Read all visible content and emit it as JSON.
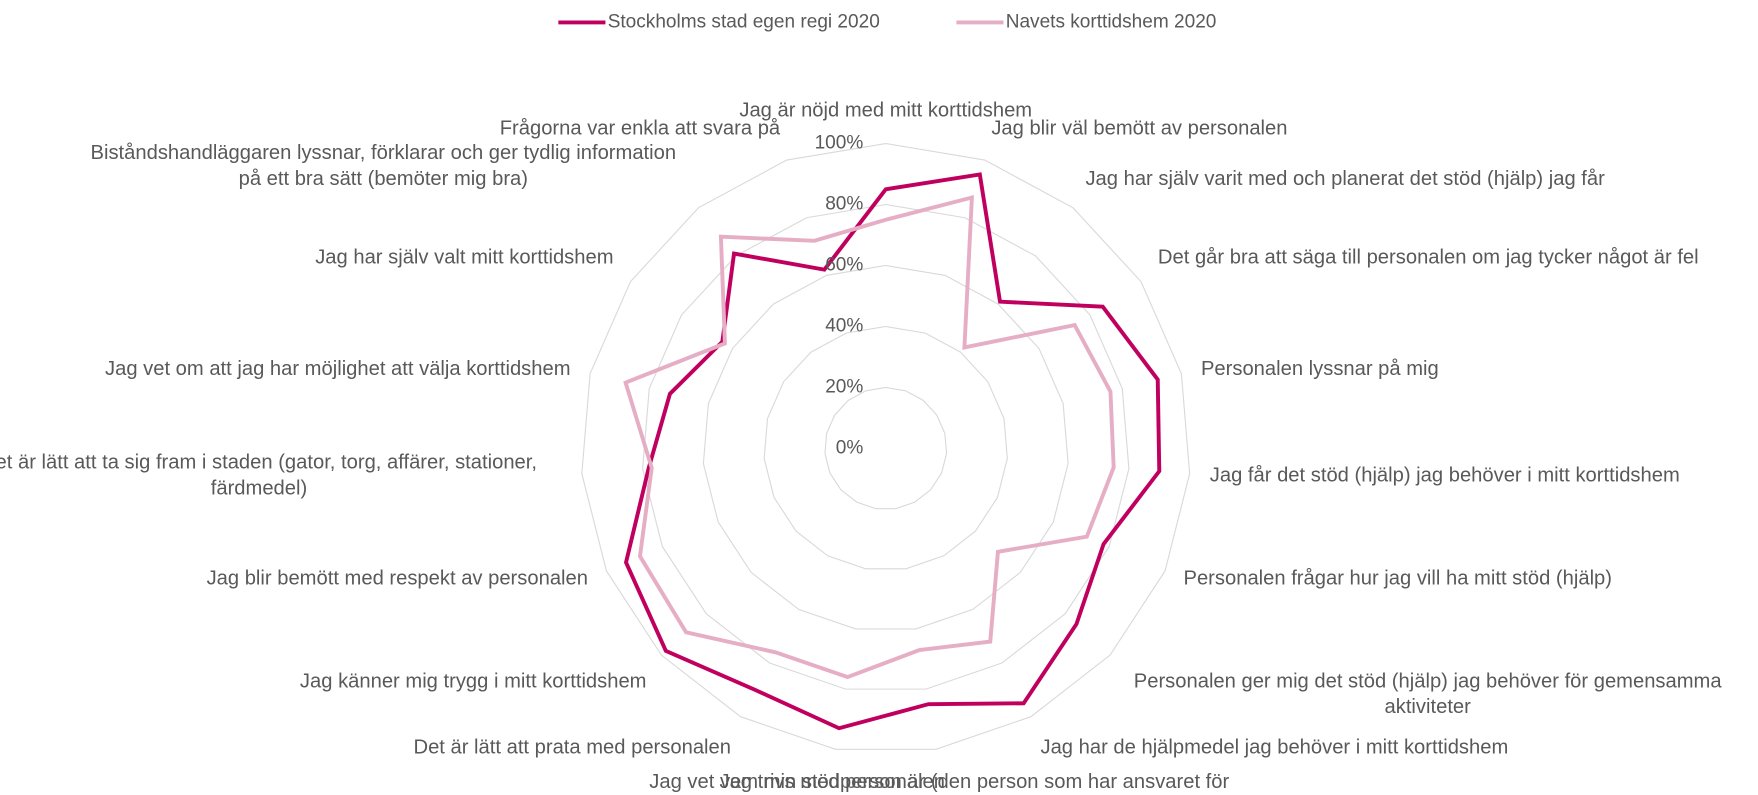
{
  "chart_data": {
    "type": "radar",
    "categories": [
      "Jag är nöjd med mitt korttidshem",
      "Jag blir väl bemött av personalen",
      "Jag har själv varit med och planerat det stöd (hjälp) jag får",
      "Det går bra att säga till personalen om jag tycker något är fel",
      "Personalen lyssnar på mig",
      "Jag får det stöd (hjälp) jag behöver i mitt korttidshem",
      "Personalen frågar hur jag vill ha mitt stöd (hjälp)",
      "Personalen ger mig det stöd (hjälp) jag behöver för gemensamma aktiviteter",
      "Jag har de hjälpmedel jag behöver i mitt korttidshem",
      "Jag vet vem min stödperson är (den person som har ansvaret för mig)",
      "Jag trivs med personalen",
      "Det är lätt att prata med personalen",
      "Jag känner mig trygg i mitt korttidshem",
      "Jag blir bemött med respekt av personalen",
      "Det är lätt att ta sig fram i staden (gator, torg, affärer, stationer, färdmedel)",
      "Jag vet om att jag har möjlighet att välja korttidshem",
      "Jag har själv valt mitt korttidshem",
      "Biståndshandläggaren lyssnar, förklarar och ger tydlig information på ett bra sätt (bemöter mig bra)",
      "Frågorna var enkla att svara på"
    ],
    "series": [
      {
        "name": "Stockholms stad egen regi 2020",
        "color": "#c0005f",
        "values": [
          85,
          95,
          61,
          85,
          92,
          90,
          78,
          85,
          95,
          85,
          93,
          90,
          98,
          93,
          78,
          73,
          64,
          81,
          62
        ]
      },
      {
        "name": "Navets korttidshem 2020",
        "color": "#e6aec4",
        "values": [
          75,
          87,
          42,
          74,
          76,
          75,
          72,
          50,
          72,
          67,
          76,
          76,
          89,
          88,
          77,
          88,
          63,
          88,
          72
        ]
      }
    ],
    "ylim": [
      0,
      100
    ],
    "yticks": [
      {
        "value": 0,
        "label": "0%"
      },
      {
        "value": 20,
        "label": "20%"
      },
      {
        "value": 40,
        "label": "40%"
      },
      {
        "value": 60,
        "label": "60%"
      },
      {
        "value": 80,
        "label": "80%"
      },
      {
        "value": 100,
        "label": "100%"
      }
    ],
    "grid": true,
    "legend": "top"
  }
}
